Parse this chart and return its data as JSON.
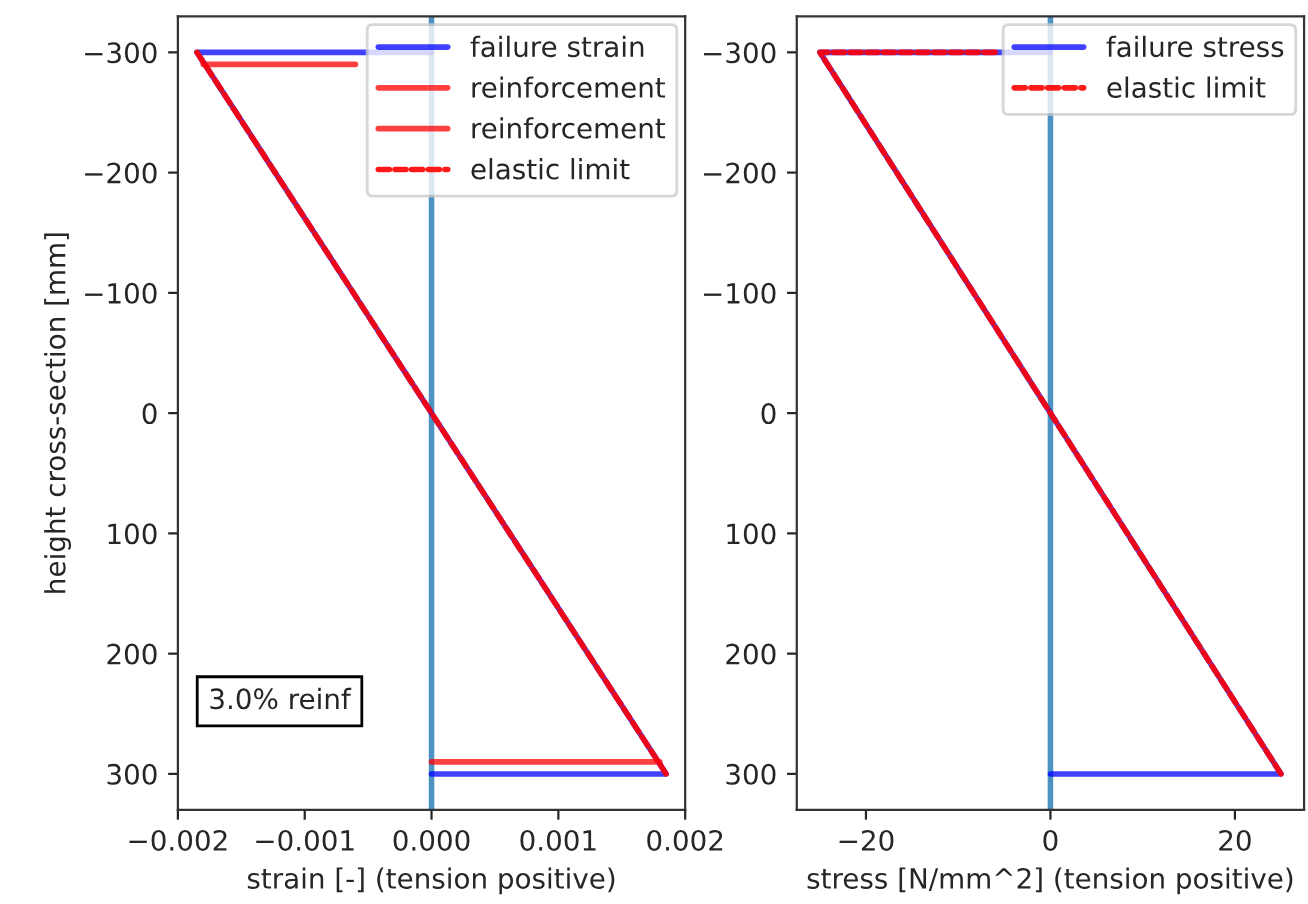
{
  "chart_data": [
    {
      "type": "line",
      "xlabel": "strain [-] (tension positive)",
      "ylabel": "height cross-section [mm]",
      "xlim": [
        -0.002,
        0.002
      ],
      "xticks": [
        {
          "value": -0.002,
          "label": "−0.002"
        },
        {
          "value": -0.001,
          "label": "−0.001"
        },
        {
          "value": 0,
          "label": "0.000"
        },
        {
          "value": 0.001,
          "label": "0.001"
        },
        {
          "value": 0.002,
          "label": "0.002"
        }
      ],
      "ylim": [
        330,
        -330
      ],
      "yticks": [
        {
          "value": -300,
          "label": "−300"
        },
        {
          "value": -200,
          "label": "−200"
        },
        {
          "value": -100,
          "label": "−100"
        },
        0,
        100,
        200,
        300
      ],
      "series": [
        {
          "name": "failure strain",
          "color": "#0000ff",
          "line_style": "solid",
          "x": [
            0,
            -0.00185,
            0.00185,
            0
          ],
          "values": [
            -300,
            -300,
            300,
            300
          ]
        },
        {
          "name": "reinforcement",
          "color": "#ff0000",
          "line_style": "solid",
          "x": [
            -0.0018,
            -0.0006
          ],
          "values": [
            -290,
            -290
          ]
        },
        {
          "name": "reinforcement",
          "color": "#ff0000",
          "line_style": "solid",
          "x": [
            0,
            0.0018
          ],
          "values": [
            290,
            290
          ]
        },
        {
          "name": "elastic limit",
          "color": "#ff0000",
          "line_style": "dashed",
          "x": [
            -0.00185,
            0.00185
          ],
          "values": [
            -300,
            300
          ]
        }
      ],
      "ref_lines": [
        {
          "axis": "x",
          "value": 0,
          "color": "#1f77b4"
        }
      ],
      "annotations": [
        "3.0% reinf"
      ],
      "legend": "top right",
      "grid": false
    },
    {
      "type": "line",
      "xlabel": "stress [N/mm^2] (tension positive)",
      "xlim": [
        -27.5,
        27.5
      ],
      "xticks": [
        {
          "value": -20,
          "label": "−20"
        },
        0,
        20
      ],
      "ylim": [
        330,
        -330
      ],
      "yticks": [
        {
          "value": -300,
          "label": "−300"
        },
        {
          "value": -200,
          "label": "−200"
        },
        {
          "value": -100,
          "label": "−100"
        },
        0,
        100,
        200,
        300
      ],
      "series": [
        {
          "name": "failure stress",
          "color": "#0000ff",
          "line_style": "solid",
          "x": [
            0,
            -25,
            25,
            0
          ],
          "values": [
            -300,
            -300,
            300,
            300
          ]
        },
        {
          "name": "elastic limit",
          "color": "#ff0000",
          "line_style": "dashed",
          "x": [
            -6,
            -25,
            25
          ],
          "values": [
            -300,
            -300,
            300
          ]
        }
      ],
      "ref_lines": [
        {
          "axis": "x",
          "value": 0,
          "color": "#1f77b4"
        }
      ],
      "legend": "top right",
      "grid": false
    }
  ]
}
